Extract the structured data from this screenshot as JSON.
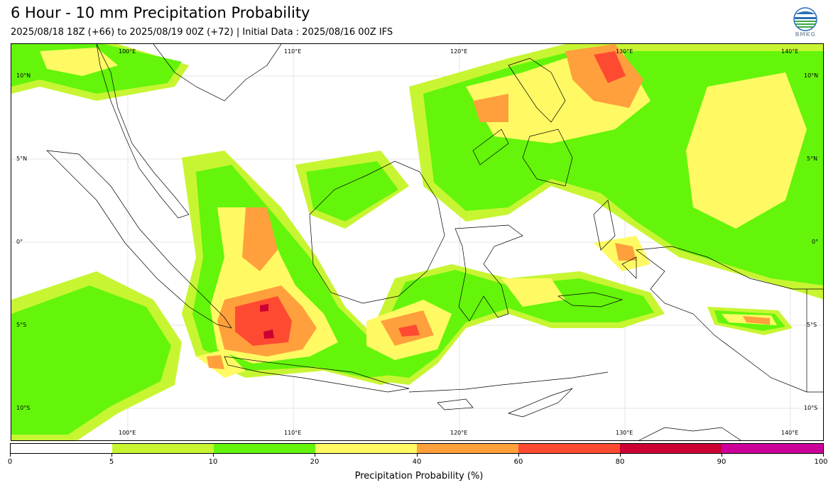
{
  "header": {
    "title": "6 Hour - 10 mm Precipitation Probability",
    "subtitle": "2025/08/18 18Z (+66) to 2025/08/19 00Z (+72) | Initial Data : 2025/08/16 00Z IFS"
  },
  "logo": {
    "text": "BMKG",
    "icon": "bmkg-logo-icon"
  },
  "map": {
    "lon_labels": [
      "100°E",
      "110°E",
      "120°E",
      "130°E",
      "140°E"
    ],
    "lat_labels": [
      "10°N",
      "5°N",
      "0°",
      "5°S",
      "10°S"
    ]
  },
  "colorbar": {
    "label": "Precipitation Probability (%)",
    "ticks": [
      "0",
      "5",
      "10",
      "20",
      "40",
      "60",
      "80",
      "90",
      "100"
    ],
    "colors": [
      "#ffffff",
      "#c8f532",
      "#64f50a",
      "#fffa64",
      "#ffa03c",
      "#ff4a32",
      "#cc0033",
      "#cc0099"
    ]
  },
  "legend_colors": {
    "c5": "#c8f532",
    "c10": "#64f50a",
    "c20": "#fffa64",
    "c40": "#ffa03c",
    "c60": "#ff4a32",
    "c80": "#cc0033"
  }
}
